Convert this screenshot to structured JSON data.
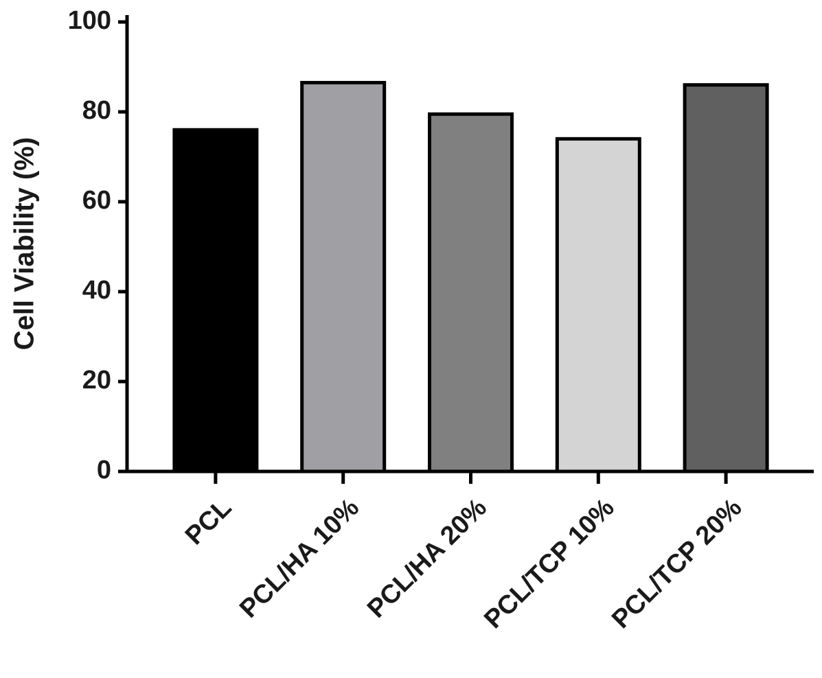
{
  "chart_data": {
    "type": "bar",
    "ylabel": "Cell Viability (%)",
    "categories": [
      "PCL",
      "PCL/HA 10%",
      "PCL/HA 20%",
      "PCL/TCP 10%",
      "PCL/TCP 20%"
    ],
    "values": [
      76,
      86.5,
      79.5,
      74,
      86
    ],
    "colors": [
      "#000000",
      "#a0a0a4",
      "#808080",
      "#d4d4d4",
      "#606060"
    ],
    "edgecolor": "#000000",
    "ylim": [
      0,
      100
    ],
    "yticks": [
      0,
      20,
      40,
      60,
      80,
      100
    ],
    "grid": false
  }
}
